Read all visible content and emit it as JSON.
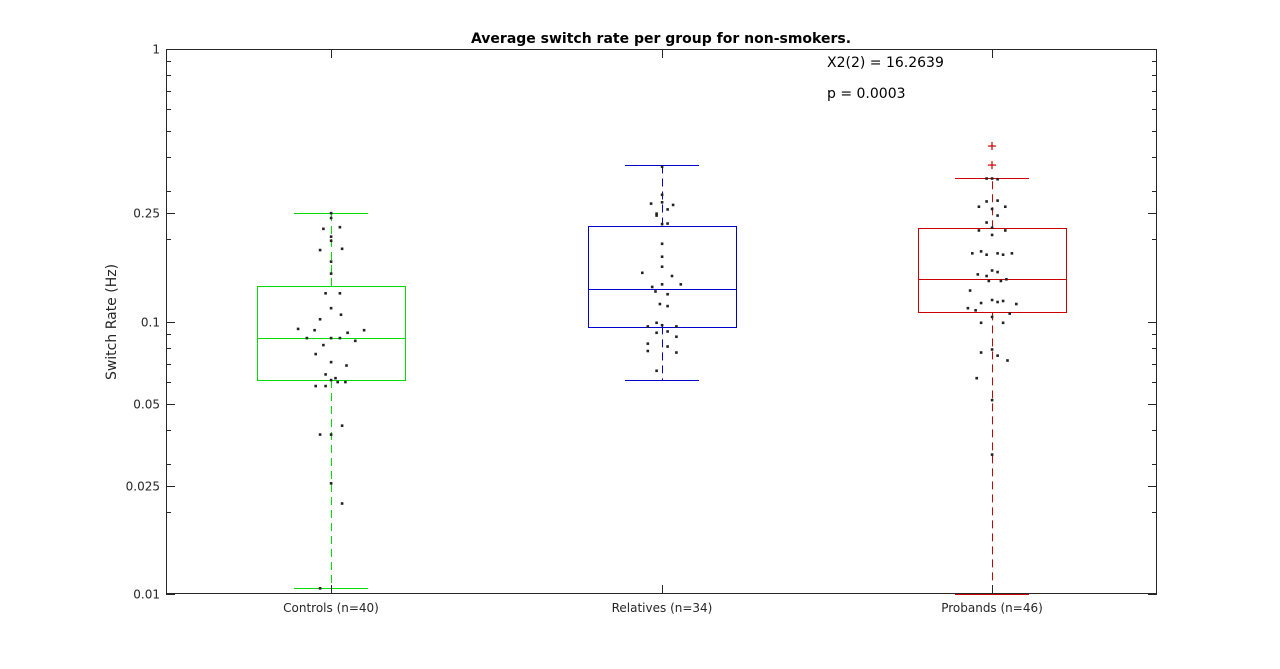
{
  "chart_data": {
    "type": "box",
    "title": "Average switch rate per group for non-smokers.",
    "xlabel": "",
    "ylabel": "Switch Rate (Hz)",
    "yscale": "log",
    "ylim": [
      0.01,
      1
    ],
    "yticks": [
      0.01,
      0.025,
      0.05,
      0.1,
      0.25,
      1
    ],
    "ytick_labels": [
      "0.01",
      "0.025",
      "0.05",
      "0.1",
      "0.25",
      "1"
    ],
    "annotations": [
      "X2(2) = 16.2639",
      "p = 0.0003"
    ],
    "groups": [
      {
        "label": "Controls (n=40)",
        "color": "#00dd00",
        "median": 0.087,
        "q1": 0.061,
        "q3": 0.135,
        "whisker_low": 0.0105,
        "whisker_high": 0.25,
        "outliers": [],
        "points": [
          {
            "jitter": 0.0,
            "y": 0.25
          },
          {
            "jitter": 0.0,
            "y": 0.24
          },
          {
            "jitter": 0.08,
            "y": 0.222
          },
          {
            "jitter": -0.07,
            "y": 0.219
          },
          {
            "jitter": 0.0,
            "y": 0.205
          },
          {
            "jitter": 0.0,
            "y": 0.198
          },
          {
            "jitter": -0.1,
            "y": 0.183
          },
          {
            "jitter": 0.1,
            "y": 0.185
          },
          {
            "jitter": 0.0,
            "y": 0.166
          },
          {
            "jitter": 0.0,
            "y": 0.15
          },
          {
            "jitter": -0.05,
            "y": 0.127
          },
          {
            "jitter": 0.08,
            "y": 0.127
          },
          {
            "jitter": 0.0,
            "y": 0.112
          },
          {
            "jitter": 0.09,
            "y": 0.106
          },
          {
            "jitter": -0.1,
            "y": 0.102
          },
          {
            "jitter": -0.3,
            "y": 0.094
          },
          {
            "jitter": -0.15,
            "y": 0.093
          },
          {
            "jitter": 0.15,
            "y": 0.091
          },
          {
            "jitter": 0.3,
            "y": 0.093
          },
          {
            "jitter": -0.22,
            "y": 0.087
          },
          {
            "jitter": 0.0,
            "y": 0.087
          },
          {
            "jitter": 0.08,
            "y": 0.087
          },
          {
            "jitter": 0.22,
            "y": 0.085
          },
          {
            "jitter": -0.07,
            "y": 0.082
          },
          {
            "jitter": -0.14,
            "y": 0.076
          },
          {
            "jitter": 0.14,
            "y": 0.069
          },
          {
            "jitter": 0.0,
            "y": 0.071
          },
          {
            "jitter": -0.05,
            "y": 0.064
          },
          {
            "jitter": 0.04,
            "y": 0.062
          },
          {
            "jitter": 0.0,
            "y": 0.061
          },
          {
            "jitter": 0.13,
            "y": 0.06
          },
          {
            "jitter": 0.06,
            "y": 0.06
          },
          {
            "jitter": -0.14,
            "y": 0.058
          },
          {
            "jitter": -0.05,
            "y": 0.058
          },
          {
            "jitter": 0.1,
            "y": 0.0415
          },
          {
            "jitter": -0.1,
            "y": 0.0385
          },
          {
            "jitter": 0.0,
            "y": 0.0385
          },
          {
            "jitter": 0.0,
            "y": 0.0255
          },
          {
            "jitter": 0.1,
            "y": 0.0215
          },
          {
            "jitter": -0.1,
            "y": 0.0105
          }
        ]
      },
      {
        "label": "Relatives (n=34)",
        "color": "#0000cc",
        "median": 0.132,
        "q1": 0.096,
        "q3": 0.225,
        "whisker_low": 0.061,
        "whisker_high": 0.375,
        "outliers": [],
        "points": [
          {
            "jitter": 0.0,
            "y": 0.37
          },
          {
            "jitter": 0.0,
            "y": 0.292
          },
          {
            "jitter": -0.1,
            "y": 0.271
          },
          {
            "jitter": 0.0,
            "y": 0.274
          },
          {
            "jitter": 0.1,
            "y": 0.268
          },
          {
            "jitter": 0.05,
            "y": 0.258
          },
          {
            "jitter": -0.05,
            "y": 0.249
          },
          {
            "jitter": -0.05,
            "y": 0.245
          },
          {
            "jitter": 0.0,
            "y": 0.228
          },
          {
            "jitter": 0.05,
            "y": 0.229
          },
          {
            "jitter": 0.0,
            "y": 0.193
          },
          {
            "jitter": 0.0,
            "y": 0.173
          },
          {
            "jitter": 0.0,
            "y": 0.159
          },
          {
            "jitter": -0.18,
            "y": 0.151
          },
          {
            "jitter": 0.09,
            "y": 0.147
          },
          {
            "jitter": 0.17,
            "y": 0.137
          },
          {
            "jitter": 0.0,
            "y": 0.137
          },
          {
            "jitter": -0.09,
            "y": 0.134
          },
          {
            "jitter": -0.06,
            "y": 0.129
          },
          {
            "jitter": 0.05,
            "y": 0.126
          },
          {
            "jitter": -0.02,
            "y": 0.116
          },
          {
            "jitter": 0.05,
            "y": 0.114
          },
          {
            "jitter": -0.05,
            "y": 0.099
          },
          {
            "jitter": 0.0,
            "y": 0.097
          },
          {
            "jitter": 0.13,
            "y": 0.096
          },
          {
            "jitter": -0.13,
            "y": 0.096
          },
          {
            "jitter": 0.05,
            "y": 0.092
          },
          {
            "jitter": -0.05,
            "y": 0.091
          },
          {
            "jitter": 0.13,
            "y": 0.088
          },
          {
            "jitter": -0.13,
            "y": 0.083
          },
          {
            "jitter": 0.05,
            "y": 0.081
          },
          {
            "jitter": -0.13,
            "y": 0.078
          },
          {
            "jitter": 0.13,
            "y": 0.077
          },
          {
            "jitter": -0.05,
            "y": 0.066
          }
        ]
      },
      {
        "label": "Probands (n=46)",
        "color": "#cc0000",
        "median": 0.143,
        "q1": 0.108,
        "q3": 0.22,
        "whisker_low": 0.01,
        "whisker_high": 0.335,
        "outliers": [
          0.4405,
          0.375
        ],
        "points": [
          {
            "jitter": 0.0,
            "y": 0.335
          },
          {
            "jitter": -0.05,
            "y": 0.335
          },
          {
            "jitter": 0.05,
            "y": 0.333
          },
          {
            "jitter": 0.05,
            "y": 0.278
          },
          {
            "jitter": -0.05,
            "y": 0.276
          },
          {
            "jitter": -0.12,
            "y": 0.264
          },
          {
            "jitter": 0.12,
            "y": 0.264
          },
          {
            "jitter": 0.0,
            "y": 0.259
          },
          {
            "jitter": 0.05,
            "y": 0.245
          },
          {
            "jitter": -0.05,
            "y": 0.231
          },
          {
            "jitter": 0.0,
            "y": 0.221
          },
          {
            "jitter": -0.12,
            "y": 0.216
          },
          {
            "jitter": 0.12,
            "y": 0.216
          },
          {
            "jitter": 0.0,
            "y": 0.208
          },
          {
            "jitter": -0.18,
            "y": 0.178
          },
          {
            "jitter": 0.18,
            "y": 0.178
          },
          {
            "jitter": -0.1,
            "y": 0.181
          },
          {
            "jitter": 0.05,
            "y": 0.178
          },
          {
            "jitter": 0.1,
            "y": 0.176
          },
          {
            "jitter": -0.05,
            "y": 0.176
          },
          {
            "jitter": 0.0,
            "y": 0.154
          },
          {
            "jitter": -0.13,
            "y": 0.149
          },
          {
            "jitter": 0.05,
            "y": 0.152
          },
          {
            "jitter": -0.05,
            "y": 0.147
          },
          {
            "jitter": 0.13,
            "y": 0.143
          },
          {
            "jitter": -0.03,
            "y": 0.141
          },
          {
            "jitter": 0.08,
            "y": 0.141
          },
          {
            "jitter": -0.2,
            "y": 0.13
          },
          {
            "jitter": 0.0,
            "y": 0.12
          },
          {
            "jitter": 0.05,
            "y": 0.118
          },
          {
            "jitter": -0.1,
            "y": 0.117
          },
          {
            "jitter": 0.1,
            "y": 0.119
          },
          {
            "jitter": 0.22,
            "y": 0.116
          },
          {
            "jitter": -0.22,
            "y": 0.112
          },
          {
            "jitter": -0.15,
            "y": 0.11
          },
          {
            "jitter": 0.16,
            "y": 0.107
          },
          {
            "jitter": 0.0,
            "y": 0.104
          },
          {
            "jitter": -0.1,
            "y": 0.099
          },
          {
            "jitter": 0.1,
            "y": 0.099
          },
          {
            "jitter": 0.0,
            "y": 0.079
          },
          {
            "jitter": -0.1,
            "y": 0.077
          },
          {
            "jitter": 0.05,
            "y": 0.075
          },
          {
            "jitter": 0.14,
            "y": 0.072
          },
          {
            "jitter": -0.14,
            "y": 0.062
          },
          {
            "jitter": 0.0,
            "y": 0.0515
          },
          {
            "jitter": 0.0,
            "y": 0.0325
          }
        ]
      }
    ]
  }
}
